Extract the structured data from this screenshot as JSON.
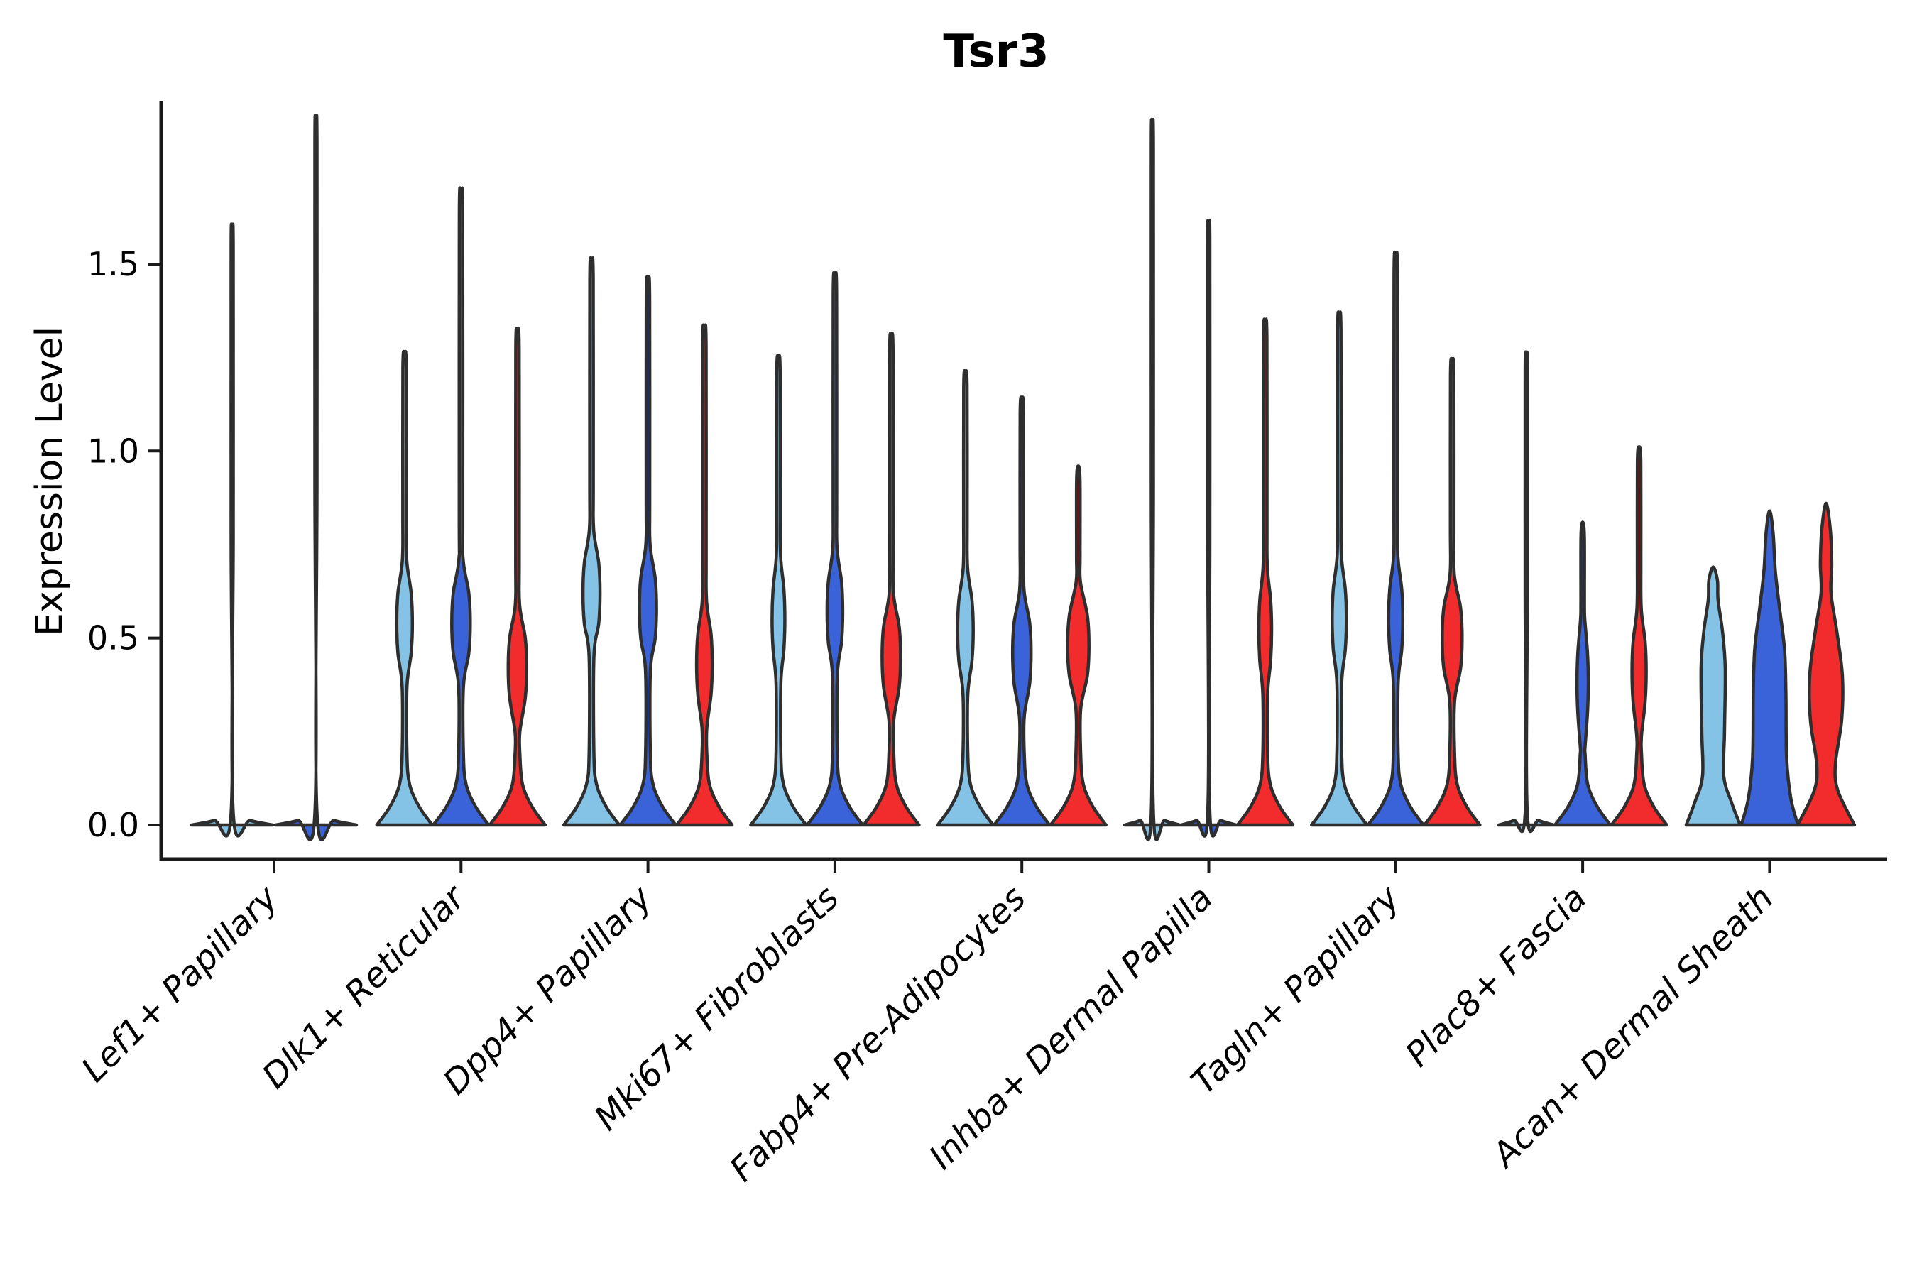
{
  "chart_data": {
    "type": "violin",
    "title": "Tsr3",
    "ylabel": "Expression Level",
    "ytick_labels": [
      "0.0",
      "0.5",
      "1.0",
      "1.5"
    ],
    "ytick_values": [
      0.0,
      0.5,
      1.0,
      1.5
    ],
    "ylim": [
      0.0,
      1.92
    ],
    "grid": false,
    "legend": "none",
    "colors": {
      "light-blue": "#85C3E6",
      "blue": "#3A62D9",
      "red": "#F22C2C",
      "edge": "#2e2e2e",
      "axis": "#1a1a1a"
    },
    "categories": [
      {
        "label": "Lef1+ Papillary",
        "violins": [
          {
            "color": "light-blue",
            "max": 1.56,
            "collapsed": true,
            "base_hw": 57
          },
          {
            "color": "blue",
            "max": 1.84,
            "collapsed": true,
            "base_hw": 57
          }
        ]
      },
      {
        "label": "Dlk1+ Reticular",
        "violins": [
          {
            "color": "light-blue",
            "max": 1.26,
            "bulge_center": 0.54,
            "bulge_hw": 11
          },
          {
            "color": "blue",
            "max": 1.67,
            "bulge_center": 0.54,
            "bulge_hw": 13
          },
          {
            "color": "red",
            "max": 1.31,
            "bulge_center": 0.42,
            "bulge_hw": 13
          }
        ]
      },
      {
        "label": "Dpp4+ Papillary",
        "violins": [
          {
            "color": "light-blue",
            "max": 1.5,
            "bulge_center": 0.62,
            "bulge_hw": 12
          },
          {
            "color": "blue",
            "max": 1.45,
            "bulge_center": 0.58,
            "bulge_hw": 12
          },
          {
            "color": "red",
            "max": 1.32,
            "bulge_center": 0.43,
            "bulge_hw": 11
          }
        ]
      },
      {
        "label": "Mki67+ Fibroblasts",
        "violins": [
          {
            "color": "light-blue",
            "max": 1.25,
            "bulge_center": 0.55,
            "bulge_hw": 9
          },
          {
            "color": "blue",
            "max": 1.46,
            "bulge_center": 0.57,
            "bulge_hw": 11
          },
          {
            "color": "red",
            "max": 1.3,
            "bulge_center": 0.45,
            "bulge_hw": 13
          }
        ]
      },
      {
        "label": "Fabp4+ Pre-Adipocytes",
        "violins": [
          {
            "color": "light-blue",
            "max": 1.21,
            "bulge_center": 0.52,
            "bulge_hw": 11
          },
          {
            "color": "blue",
            "max": 1.14,
            "bulge_center": 0.46,
            "bulge_hw": 13
          },
          {
            "color": "red",
            "max": 0.96,
            "bulge_center": 0.48,
            "bulge_hw": 15
          }
        ]
      },
      {
        "label": "Inhba+ Dermal Papilla",
        "violins": [
          {
            "color": "light-blue",
            "max": 1.83,
            "collapsed": true
          },
          {
            "color": "blue",
            "max": 1.57,
            "collapsed": true
          },
          {
            "color": "red",
            "max": 1.34,
            "bulge_center": 0.52,
            "bulge_hw": 9
          }
        ]
      },
      {
        "label": "Tagln+ Papillary",
        "violins": [
          {
            "color": "light-blue",
            "max": 1.36,
            "bulge_center": 0.55,
            "bulge_hw": 10
          },
          {
            "color": "blue",
            "max": 1.51,
            "bulge_center": 0.55,
            "bulge_hw": 10
          },
          {
            "color": "red",
            "max": 1.24,
            "bulge_center": 0.5,
            "bulge_hw": 14
          }
        ]
      },
      {
        "label": "Plac8+ Fascia",
        "violins": [
          {
            "color": "light-blue",
            "max": 1.23,
            "collapsed": true
          },
          {
            "color": "blue",
            "max": 0.81,
            "bulge_center": 0.38,
            "bulge_hw": 8
          },
          {
            "color": "red",
            "max": 1.01,
            "bulge_center": 0.41,
            "bulge_hw": 10
          }
        ]
      },
      {
        "label": "Acan+ Dermal Sheath",
        "violins": [
          {
            "color": "light-blue",
            "max": 0.69,
            "profile": [
              [
                0,
                38
              ],
              [
                0.06,
                26
              ],
              [
                0.13,
                15
              ],
              [
                0.25,
                16
              ],
              [
                0.42,
                17
              ],
              [
                0.52,
                13
              ],
              [
                0.6,
                7
              ],
              [
                0.655,
                6
              ],
              [
                0.69,
                0.01
              ]
            ]
          },
          {
            "color": "blue",
            "max": 0.84,
            "profile": [
              [
                0,
                40
              ],
              [
                0.07,
                30
              ],
              [
                0.18,
                24
              ],
              [
                0.35,
                23
              ],
              [
                0.47,
                21
              ],
              [
                0.58,
                14
              ],
              [
                0.68,
                8
              ],
              [
                0.78,
                5
              ],
              [
                0.84,
                0.01
              ]
            ]
          },
          {
            "color": "red",
            "max": 0.86,
            "profile": [
              [
                0,
                40
              ],
              [
                0.09,
                17
              ],
              [
                0.16,
                13
              ],
              [
                0.28,
                22
              ],
              [
                0.4,
                23
              ],
              [
                0.52,
                15
              ],
              [
                0.62,
                7
              ],
              [
                0.7,
                8
              ],
              [
                0.79,
                6
              ],
              [
                0.86,
                0.01
              ]
            ]
          }
        ]
      }
    ]
  }
}
